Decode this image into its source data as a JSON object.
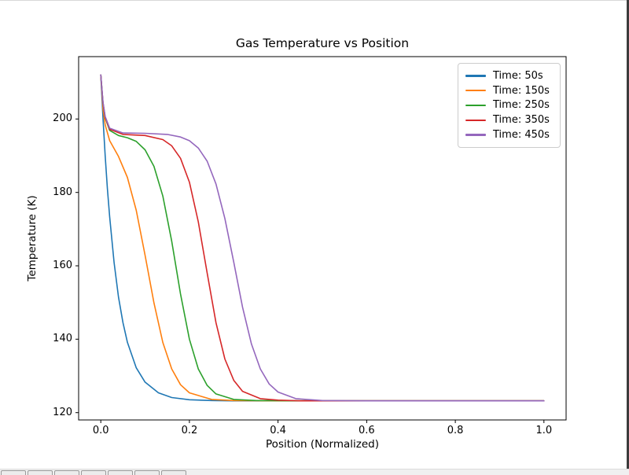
{
  "window": {
    "background": "#ffffff",
    "right_border_color": "#3c3c3c",
    "toolbar": {
      "background": "#f0f0f0",
      "buttons": [
        {
          "icon": "home-icon"
        },
        {
          "icon": "back-arrow-icon"
        },
        {
          "icon": "forward-arrow-icon"
        },
        {
          "icon": "pan-icon"
        },
        {
          "icon": "zoom-rect-icon"
        },
        {
          "icon": "subplots-config-icon"
        },
        {
          "icon": "save-icon"
        }
      ]
    }
  },
  "chart_data": {
    "type": "line",
    "title": "Gas Temperature vs Position",
    "xlabel": "Position (Normalized)",
    "ylabel": "Temperature (K)",
    "xlim": [
      -0.05,
      1.05
    ],
    "ylim": [
      118,
      217
    ],
    "x_tick_values": [
      0.0,
      0.2,
      0.4,
      0.6,
      0.8,
      1.0
    ],
    "x_tick_labels": [
      "0.0",
      "0.2",
      "0.4",
      "0.6",
      "0.8",
      "1.0"
    ],
    "y_tick_values": [
      120,
      140,
      160,
      180,
      200
    ],
    "y_tick_labels": [
      "120",
      "140",
      "160",
      "180",
      "200"
    ],
    "grid": false,
    "legend_position": "upper right",
    "axis_color": "#000000",
    "series": [
      {
        "name": "Time: 50s",
        "color": "#1f77b4",
        "points": [
          [
            0,
            212
          ],
          [
            0.005,
            200.2
          ],
          [
            0.01,
            189.9
          ],
          [
            0.015,
            181
          ],
          [
            0.02,
            173.3
          ],
          [
            0.03,
            160.9
          ],
          [
            0.04,
            151.5
          ],
          [
            0.05,
            144.5
          ],
          [
            0.06,
            139.2
          ],
          [
            0.08,
            132.2
          ],
          [
            0.1,
            128.3
          ],
          [
            0.13,
            125.4
          ],
          [
            0.16,
            124.1
          ],
          [
            0.2,
            123.5
          ],
          [
            0.25,
            123.3
          ],
          [
            0.3,
            123.2
          ],
          [
            0.4,
            123.2
          ],
          [
            0.6,
            123.2
          ],
          [
            1,
            123.2
          ]
        ]
      },
      {
        "name": "Time: 150s",
        "color": "#ff7f0e",
        "points": [
          [
            0,
            212
          ],
          [
            0.005,
            202.7
          ],
          [
            0.01,
            198.4
          ],
          [
            0.02,
            194.1
          ],
          [
            0.04,
            189.8
          ],
          [
            0.06,
            184.1
          ],
          [
            0.08,
            175.1
          ],
          [
            0.1,
            162.9
          ],
          [
            0.12,
            149.9
          ],
          [
            0.14,
            139.1
          ],
          [
            0.16,
            131.9
          ],
          [
            0.18,
            127.6
          ],
          [
            0.2,
            125.4
          ],
          [
            0.25,
            123.6
          ],
          [
            0.3,
            123.3
          ],
          [
            0.4,
            123.2
          ],
          [
            0.6,
            123.2
          ],
          [
            1,
            123.2
          ]
        ]
      },
      {
        "name": "Time: 250s",
        "color": "#2ca02c",
        "points": [
          [
            0,
            212
          ],
          [
            0.005,
            204.3
          ],
          [
            0.01,
            200.3
          ],
          [
            0.02,
            196.9
          ],
          [
            0.04,
            195.5
          ],
          [
            0.06,
            194.9
          ],
          [
            0.08,
            193.9
          ],
          [
            0.1,
            191.6
          ],
          [
            0.12,
            187.1
          ],
          [
            0.14,
            179
          ],
          [
            0.16,
            166.7
          ],
          [
            0.17,
            159.5
          ],
          [
            0.18,
            152.3
          ],
          [
            0.2,
            140
          ],
          [
            0.22,
            131.9
          ],
          [
            0.24,
            127.4
          ],
          [
            0.26,
            125.1
          ],
          [
            0.3,
            123.6
          ],
          [
            0.35,
            123.3
          ],
          [
            0.45,
            123.2
          ],
          [
            0.7,
            123.2
          ],
          [
            1,
            123.2
          ]
        ]
      },
      {
        "name": "Time: 350s",
        "color": "#d62728",
        "points": [
          [
            0,
            212
          ],
          [
            0.005,
            204.4
          ],
          [
            0.01,
            200.4
          ],
          [
            0.02,
            197.2
          ],
          [
            0.05,
            195.8
          ],
          [
            0.1,
            195.5
          ],
          [
            0.14,
            194.4
          ],
          [
            0.16,
            192.7
          ],
          [
            0.18,
            189.3
          ],
          [
            0.2,
            182.8
          ],
          [
            0.22,
            172
          ],
          [
            0.24,
            158
          ],
          [
            0.26,
            144.5
          ],
          [
            0.28,
            134.6
          ],
          [
            0.3,
            128.8
          ],
          [
            0.32,
            125.8
          ],
          [
            0.36,
            123.8
          ],
          [
            0.4,
            123.4
          ],
          [
            0.45,
            123.2
          ],
          [
            0.7,
            123.2
          ],
          [
            1,
            123.2
          ]
        ]
      },
      {
        "name": "Time: 450s",
        "color": "#9467bd",
        "points": [
          [
            0,
            212
          ],
          [
            0.005,
            204.6
          ],
          [
            0.01,
            200.7
          ],
          [
            0.02,
            197.5
          ],
          [
            0.05,
            196.2
          ],
          [
            0.1,
            196.1
          ],
          [
            0.15,
            195.8
          ],
          [
            0.18,
            195.1
          ],
          [
            0.2,
            194.1
          ],
          [
            0.22,
            192.1
          ],
          [
            0.24,
            188.5
          ],
          [
            0.26,
            182.3
          ],
          [
            0.28,
            172.9
          ],
          [
            0.3,
            161
          ],
          [
            0.32,
            148.7
          ],
          [
            0.34,
            138.7
          ],
          [
            0.36,
            131.9
          ],
          [
            0.38,
            127.8
          ],
          [
            0.4,
            125.6
          ],
          [
            0.44,
            123.8
          ],
          [
            0.5,
            123.3
          ],
          [
            0.6,
            123.2
          ],
          [
            0.8,
            123.2
          ],
          [
            1,
            123.2
          ]
        ]
      }
    ]
  }
}
